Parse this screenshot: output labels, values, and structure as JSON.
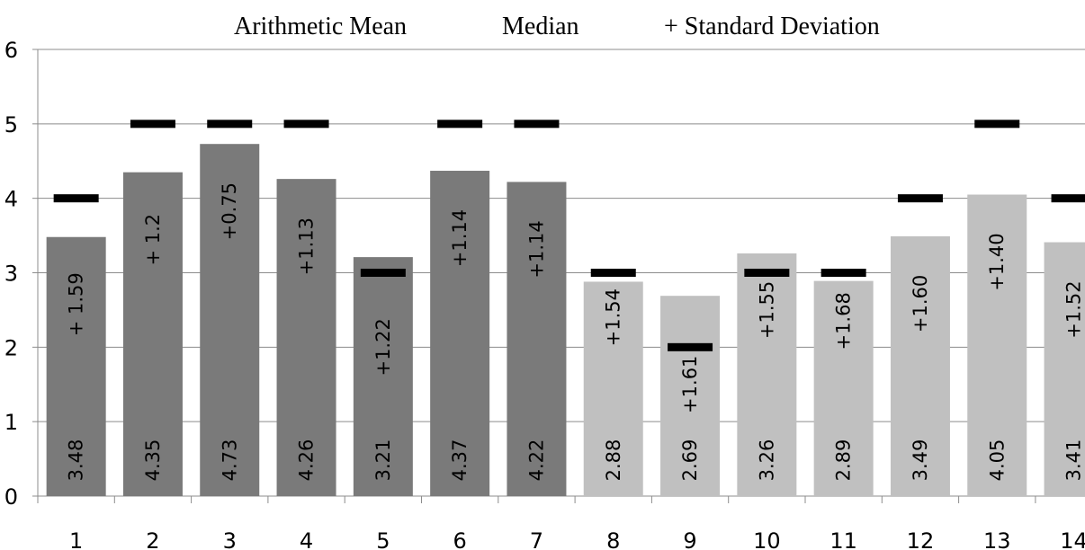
{
  "chart_data": {
    "type": "bar",
    "legend": [
      "Arithmetic Mean",
      "Median",
      "+ Standard Deviation"
    ],
    "legend_position": "top",
    "categories": [
      "1",
      "2",
      "3",
      "4",
      "5",
      "6",
      "7",
      "8",
      "9",
      "10",
      "11",
      "12",
      "13",
      "14"
    ],
    "series": [
      {
        "name": "Arithmetic Mean",
        "values": [
          3.48,
          4.35,
          4.73,
          4.26,
          3.21,
          4.37,
          4.22,
          2.88,
          2.69,
          3.26,
          2.89,
          3.49,
          4.05,
          3.41
        ]
      },
      {
        "name": "Median",
        "values": [
          4,
          5,
          5,
          5,
          3,
          5,
          5,
          3,
          2,
          3,
          3,
          4,
          5,
          4
        ]
      },
      {
        "name": "+ Standard Deviation",
        "values": [
          1.59,
          1.2,
          0.75,
          1.13,
          1.22,
          1.14,
          1.14,
          1.54,
          1.61,
          1.55,
          1.68,
          1.6,
          1.4,
          1.52
        ]
      }
    ],
    "mean_labels": [
      "3.48",
      "4.35",
      "4.73",
      "4.26",
      "3.21",
      "4.37",
      "4.22",
      "2.88",
      "2.69",
      "3.26",
      "2.89",
      "3.49",
      "4.05",
      "3.41"
    ],
    "sd_labels": [
      "+ 1.59",
      "+ 1.2",
      "+0.75",
      "+1.13",
      "+1.22",
      "+1.14",
      "+1.14",
      "+1.54",
      "+1.61",
      "+1.55",
      "+1.68",
      "+1.60",
      "+1.40",
      "+1.52"
    ],
    "y_ticks": [
      "0",
      "1",
      "2",
      "3",
      "4",
      "5",
      "6"
    ],
    "ylim": [
      0,
      6
    ],
    "grid": true,
    "colors": {
      "dark_bar": "#7a7a7a",
      "light_bar": "#c0c0c0",
      "median": "#000000",
      "grid": "#8c8c8c"
    },
    "dark_bar_count": 7
  }
}
